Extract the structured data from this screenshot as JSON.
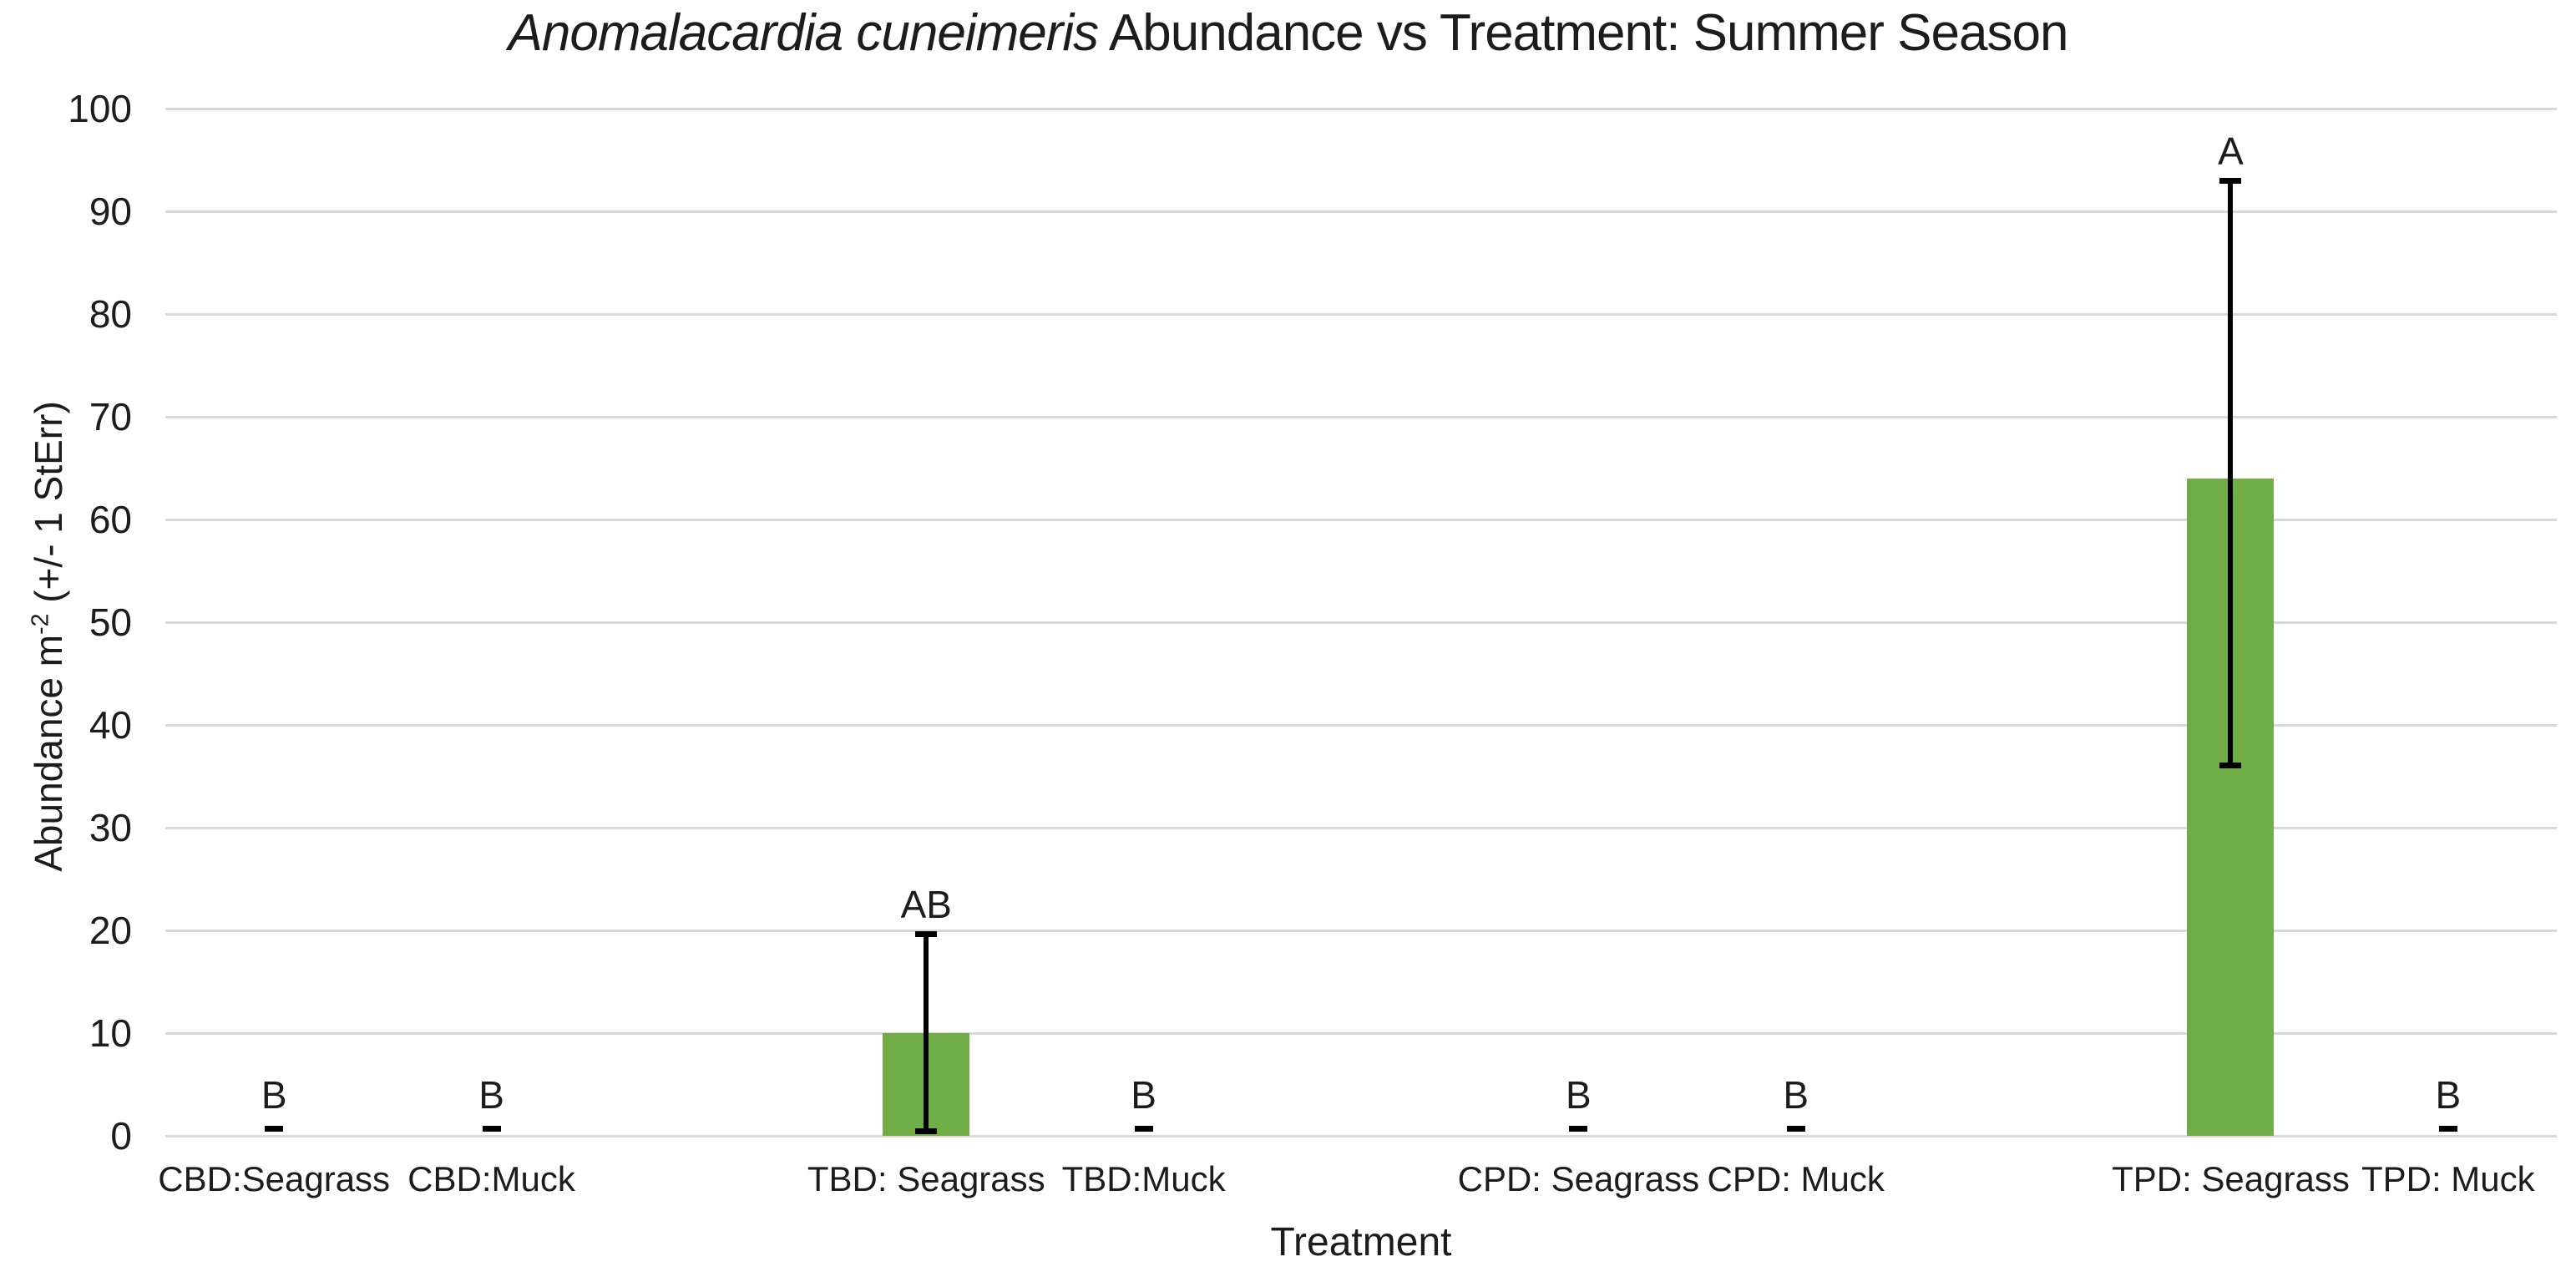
{
  "title": {
    "species": "Anomalacardia cuneimeris",
    "rest": " Abundance vs Treatment: Summer Season"
  },
  "axes": {
    "y_title": {
      "prefix": "Abundance m",
      "superscript": "-2",
      "suffix": " (+/- 1 StErr)"
    },
    "x_title": "Treatment",
    "y_ticks": [
      0,
      10,
      20,
      30,
      40,
      50,
      60,
      70,
      80,
      90,
      100
    ],
    "y_min": 0,
    "y_max": 100
  },
  "chart_data": {
    "type": "bar",
    "title": "Anomalacardia cuneimeris Abundance vs Treatment: Summer Season",
    "title_italic_segment": "Anomalacardia cuneimeris",
    "xlabel": "Treatment",
    "ylabel": "Abundance m-2 (+/- 1 StErr)",
    "ylim": [
      0,
      100
    ],
    "y_tick_step": 10,
    "grid": true,
    "legend": false,
    "bar_color": "#70ad47",
    "error_bar_color": "#000000",
    "gridline_color": "#d9d9d9",
    "text_color": "#1c1c1c",
    "categories": [
      "CBD:Seagrass",
      "CBD:Muck",
      "TBD: Seagrass",
      "TBD:Muck",
      "CPD: Seagrass",
      "CPD: Muck",
      "TPD: Seagrass",
      "TPD: Muck"
    ],
    "values": [
      0,
      0,
      10,
      0,
      0,
      0,
      64,
      0
    ],
    "error_lower_bound": [
      0,
      0,
      0.4,
      0,
      0,
      0,
      36,
      0
    ],
    "error_upper_bound": [
      0,
      0,
      19.7,
      0,
      0,
      0,
      93,
      0
    ],
    "significance_letters": [
      "B",
      "B",
      "AB",
      "B",
      "B",
      "B",
      "A",
      "B"
    ],
    "slot_index": [
      1,
      2,
      4,
      5,
      7,
      8,
      10,
      11
    ],
    "slot_count": 11
  }
}
